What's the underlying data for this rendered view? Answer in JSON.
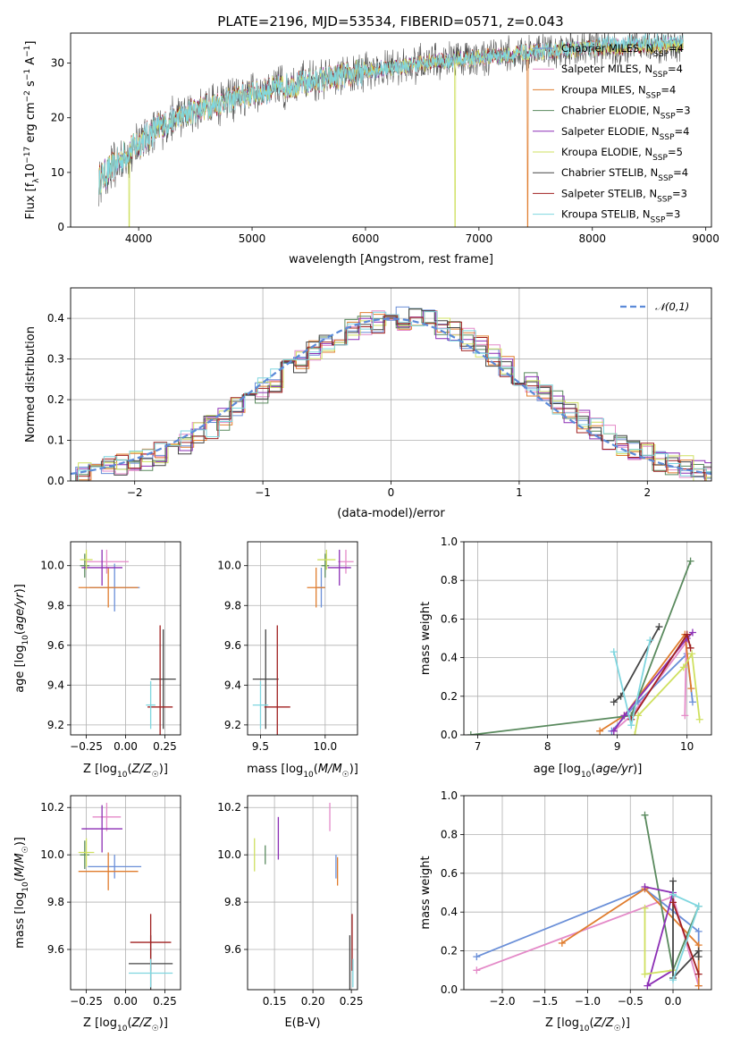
{
  "figure": {
    "title": "PLATE=2196, MJD=53534, FIBERID=0571, z=0.043",
    "colors": [
      "#6a8fd8",
      "#e48ac8",
      "#e07d2e",
      "#5a8a5e",
      "#8c2fb5",
      "#cfe060",
      "#454545",
      "#a02020",
      "#7fd6df"
    ]
  },
  "chart_data": [
    {
      "id": "spectrum",
      "type": "line",
      "xlabel": "wavelength [Angstrom, rest frame]",
      "ylabel": "Flux [f_λ10^-17 erg cm^-2 s^-1 A^-1]",
      "xlim": [
        3400,
        9050
      ],
      "ylim": [
        0,
        35.5
      ],
      "xticks": [
        4000,
        5000,
        6000,
        7000,
        8000,
        9000
      ],
      "yticks": [
        0,
        10,
        20,
        30
      ],
      "legend_position": "top-right",
      "series": [
        {
          "name": "Chabrier MILES, N_SSP=4"
        },
        {
          "name": "Salpeter MILES, N_SSP=4"
        },
        {
          "name": "Kroupa MILES, N_SSP=4"
        },
        {
          "name": "Chabrier ELODIE, N_SSP=3"
        },
        {
          "name": "Salpeter ELODIE, N_SSP=4"
        },
        {
          "name": "Kroupa ELODIE, N_SSP=5"
        },
        {
          "name": "Chabrier STELIB, N_SSP=4"
        },
        {
          "name": "Salpeter STELIB, N_SSP=3"
        },
        {
          "name": "Kroupa STELIB, N_SSP=3"
        }
      ],
      "continuum": {
        "x": [
          3650,
          3800,
          4000,
          4200,
          4500,
          5000,
          5500,
          6000,
          6500,
          7000,
          7500,
          8000,
          8500,
          8800
        ],
        "y": [
          8.5,
          11.5,
          15.5,
          18.5,
          21.5,
          24.5,
          26.5,
          28.5,
          30.0,
          31.0,
          32.0,
          32.8,
          33.2,
          33.4
        ]
      },
      "dropouts": [
        {
          "x": 3915,
          "series": 5
        },
        {
          "x": 6790,
          "series": 5
        },
        {
          "x": 7430,
          "series": 2
        }
      ],
      "grid": false
    },
    {
      "id": "residuals",
      "type": "histogram",
      "xlabel": "(data-model)/error",
      "ylabel": "Normed distribution",
      "xlim": [
        -2.5,
        2.5
      ],
      "ylim": [
        0,
        0.475
      ],
      "xticks": [
        -2,
        -1,
        0,
        1,
        2
      ],
      "yticks": [
        0.0,
        0.1,
        0.2,
        0.3,
        0.4
      ],
      "legend": [
        {
          "name": "𝒩(0,1)",
          "style": "dashed"
        }
      ],
      "legend_position": "top-right",
      "grid": true,
      "bin_width": 0.1
    },
    {
      "id": "age-vs-z",
      "type": "errorbar",
      "xlabel": "Z [log10(Z/Z☉)]",
      "ylabel": "age  [log10(age/yr)]",
      "xlim": [
        -0.35,
        0.35
      ],
      "ylim": [
        9.15,
        10.12
      ],
      "xticks": [
        -0.25,
        0.0,
        0.25
      ],
      "yticks": [
        9.2,
        9.4,
        9.6,
        9.8,
        10.0
      ],
      "grid": true,
      "points": [
        {
          "x": -0.07,
          "y": 9.89,
          "xerr": 0.16,
          "yerr": 0.12,
          "series": 0
        },
        {
          "x": -0.12,
          "y": 10.02,
          "xerr": 0.14,
          "yerr": 0.06,
          "series": 1
        },
        {
          "x": -0.11,
          "y": 9.89,
          "xerr": 0.19,
          "yerr": 0.1,
          "series": 2
        },
        {
          "x": -0.26,
          "y": 10.0,
          "xerr": 0.03,
          "yerr": 0.06,
          "series": 3
        },
        {
          "x": -0.15,
          "y": 9.99,
          "xerr": 0.13,
          "yerr": 0.09,
          "series": 4
        },
        {
          "x": -0.25,
          "y": 10.03,
          "xerr": 0.04,
          "yerr": 0.05,
          "series": 5
        },
        {
          "x": 0.24,
          "y": 9.43,
          "xerr": 0.08,
          "yerr": 0.25,
          "series": 6
        },
        {
          "x": 0.22,
          "y": 9.29,
          "xerr": 0.08,
          "yerr": 0.41,
          "series": 7
        },
        {
          "x": 0.16,
          "y": 9.3,
          "xerr": 0.03,
          "yerr": 0.12,
          "series": 8
        }
      ]
    },
    {
      "id": "age-vs-mass",
      "type": "errorbar",
      "xlabel": "mass [log10(M/M☉)]",
      "ylabel": "",
      "xlim": [
        9.4,
        10.25
      ],
      "ylim": [
        9.15,
        10.12
      ],
      "xticks": [
        9.5,
        10.0
      ],
      "yticks": [
        9.2,
        9.4,
        9.6,
        9.8,
        10.0
      ],
      "grid": true,
      "points": [
        {
          "x": 9.97,
          "y": 9.89,
          "xerr": 0.03,
          "yerr": 0.1,
          "series": 0
        },
        {
          "x": 10.16,
          "y": 10.02,
          "xerr": 0.06,
          "yerr": 0.06,
          "series": 1
        },
        {
          "x": 9.93,
          "y": 9.89,
          "xerr": 0.07,
          "yerr": 0.1,
          "series": 2
        },
        {
          "x": 10.0,
          "y": 10.0,
          "xerr": 0.03,
          "yerr": 0.06,
          "series": 3
        },
        {
          "x": 10.11,
          "y": 9.99,
          "xerr": 0.09,
          "yerr": 0.09,
          "series": 4
        },
        {
          "x": 10.01,
          "y": 10.03,
          "xerr": 0.07,
          "yerr": 0.05,
          "series": 5
        },
        {
          "x": 9.54,
          "y": 9.43,
          "xerr": 0.1,
          "yerr": 0.25,
          "series": 6
        },
        {
          "x": 9.63,
          "y": 9.29,
          "xerr": 0.1,
          "yerr": 0.41,
          "series": 7
        },
        {
          "x": 9.5,
          "y": 9.3,
          "xerr": 0.06,
          "yerr": 0.12,
          "series": 8
        }
      ]
    },
    {
      "id": "weight-vs-age",
      "type": "line",
      "xlabel": "age  [log10(age/yr)]",
      "ylabel": "mass weight",
      "xlim": [
        6.8,
        10.35
      ],
      "ylim": [
        0,
        1.0
      ],
      "xticks": [
        7,
        8,
        9,
        10
      ],
      "yticks": [
        0.0,
        0.2,
        0.4,
        0.6,
        0.8,
        1.0
      ],
      "grid": true,
      "series": [
        {
          "series": 0,
          "x": [
            8.92,
            9.3,
            10.0,
            10.08
          ],
          "y": [
            0.02,
            0.17,
            0.42,
            0.17
          ]
        },
        {
          "series": 1,
          "x": [
            8.95,
            9.2,
            9.99,
            9.97
          ],
          "y": [
            0.02,
            0.1,
            0.48,
            0.1
          ]
        },
        {
          "series": 2,
          "x": [
            8.75,
            9.1,
            9.97,
            10.06
          ],
          "y": [
            0.02,
            0.1,
            0.52,
            0.24
          ]
        },
        {
          "series": 3,
          "x": [
            6.9,
            9.2,
            10.05
          ],
          "y": [
            0.0,
            0.1,
            0.9
          ]
        },
        {
          "series": 4,
          "x": [
            8.95,
            9.1,
            10.0,
            10.08
          ],
          "y": [
            0.02,
            0.1,
            0.5,
            0.53
          ]
        },
        {
          "series": 5,
          "x": [
            9.25,
            9.3,
            9.95,
            10.07,
            10.18
          ],
          "y": [
            0.0,
            0.1,
            0.35,
            0.42,
            0.08
          ]
        },
        {
          "series": 6,
          "x": [
            8.95,
            9.05,
            9.6
          ],
          "y": [
            0.17,
            0.2,
            0.56
          ]
        },
        {
          "series": 7,
          "x": [
            9.2,
            10.0,
            10.05
          ],
          "y": [
            0.08,
            0.52,
            0.45
          ]
        },
        {
          "series": 8,
          "x": [
            8.95,
            9.2,
            9.47
          ],
          "y": [
            0.43,
            0.05,
            0.49
          ]
        }
      ]
    },
    {
      "id": "mass-vs-z",
      "type": "errorbar",
      "xlabel": "Z [log10(Z/Z☉)]",
      "ylabel": "mass [log10(M/M☉)]",
      "xlim": [
        -0.35,
        0.35
      ],
      "ylim": [
        9.43,
        10.25
      ],
      "xticks": [
        -0.25,
        0.0,
        0.25
      ],
      "yticks": [
        9.6,
        9.8,
        10.0,
        10.2
      ],
      "grid": true,
      "points": [
        {
          "x": -0.07,
          "y": 9.95,
          "xerr": 0.17,
          "yerr": 0.05,
          "series": 0
        },
        {
          "x": -0.12,
          "y": 10.16,
          "xerr": 0.09,
          "yerr": 0.06,
          "series": 1
        },
        {
          "x": -0.11,
          "y": 9.93,
          "xerr": 0.19,
          "yerr": 0.08,
          "series": 2
        },
        {
          "x": -0.26,
          "y": 10.0,
          "xerr": 0.03,
          "yerr": 0.06,
          "series": 3
        },
        {
          "x": -0.15,
          "y": 10.11,
          "xerr": 0.13,
          "yerr": 0.1,
          "series": 4
        },
        {
          "x": -0.25,
          "y": 10.01,
          "xerr": 0.05,
          "yerr": 0.06,
          "series": 5
        },
        {
          "x": 0.16,
          "y": 9.54,
          "xerr": 0.14,
          "yerr": 0.12,
          "series": 6
        },
        {
          "x": 0.16,
          "y": 9.63,
          "xerr": 0.13,
          "yerr": 0.12,
          "series": 7
        },
        {
          "x": 0.16,
          "y": 9.5,
          "xerr": 0.14,
          "yerr": 0.06,
          "series": 8
        }
      ]
    },
    {
      "id": "mass-vs-ebv",
      "type": "errorbar",
      "xlabel": "E(B-V)",
      "ylabel": "",
      "xlim": [
        0.115,
        0.258
      ],
      "ylim": [
        9.43,
        10.25
      ],
      "xticks": [
        0.15,
        0.2,
        0.25
      ],
      "yticks": [
        9.6,
        9.8,
        10.0,
        10.2
      ],
      "grid": true,
      "points": [
        {
          "x": 0.23,
          "y": 9.95,
          "xerr": 0,
          "yerr": 0.05,
          "series": 0
        },
        {
          "x": 0.222,
          "y": 10.16,
          "xerr": 0,
          "yerr": 0.06,
          "series": 1
        },
        {
          "x": 0.232,
          "y": 9.93,
          "xerr": 0,
          "yerr": 0.06,
          "series": 2
        },
        {
          "x": 0.138,
          "y": 10.0,
          "xerr": 0,
          "yerr": 0.04,
          "series": 3
        },
        {
          "x": 0.155,
          "y": 10.07,
          "xerr": 0,
          "yerr": 0.09,
          "series": 4
        },
        {
          "x": 0.124,
          "y": 10.0,
          "xerr": 0,
          "yerr": 0.07,
          "series": 5
        },
        {
          "x": 0.248,
          "y": 9.54,
          "xerr": 0,
          "yerr": 0.12,
          "series": 6
        },
        {
          "x": 0.251,
          "y": 9.63,
          "xerr": 0,
          "yerr": 0.12,
          "series": 7
        },
        {
          "x": 0.252,
          "y": 9.5,
          "xerr": 0,
          "yerr": 0.06,
          "series": 8
        }
      ]
    },
    {
      "id": "weight-vs-z",
      "type": "line",
      "xlabel": "Z [log10(Z/Z☉)]",
      "ylabel": "mass weight",
      "xlim": [
        -2.45,
        0.45
      ],
      "ylim": [
        0,
        1.0
      ],
      "xticks": [
        -2.0,
        -1.5,
        -1.0,
        -0.5,
        0.0
      ],
      "yticks": [
        0.0,
        0.2,
        0.4,
        0.6,
        0.8,
        1.0
      ],
      "grid": true,
      "series": [
        {
          "series": 0,
          "x": [
            -2.3,
            -0.33,
            0.3,
            0.3
          ],
          "y": [
            0.17,
            0.52,
            0.3,
            0.02
          ]
        },
        {
          "series": 1,
          "x": [
            -2.3,
            0.0,
            0.3
          ],
          "y": [
            0.1,
            0.48,
            0.02
          ]
        },
        {
          "series": 2,
          "x": [
            -1.3,
            -0.33,
            0.3,
            0.3
          ],
          "y": [
            0.24,
            0.52,
            0.23,
            0.02
          ]
        },
        {
          "series": 3,
          "x": [
            -0.33,
            0.0,
            0.3
          ],
          "y": [
            0.9,
            0.1,
            0.43
          ]
        },
        {
          "series": 4,
          "x": [
            -0.33,
            0.0,
            -0.3,
            0.0
          ],
          "y": [
            0.53,
            0.5,
            0.02,
            0.1
          ]
        },
        {
          "series": 5,
          "x": [
            -0.33,
            -0.33,
            0.0
          ],
          "y": [
            0.42,
            0.08,
            0.1
          ]
        },
        {
          "series": 6,
          "x": [
            0.0,
            0.0,
            0.3,
            0.3
          ],
          "y": [
            0.56,
            0.06,
            0.2,
            0.17
          ]
        },
        {
          "series": 7,
          "x": [
            0.0,
            0.3
          ],
          "y": [
            0.45,
            0.08
          ]
        },
        {
          "series": 8,
          "x": [
            0.0,
            0.3,
            0.0
          ],
          "y": [
            0.49,
            0.43,
            0.05
          ]
        }
      ]
    }
  ]
}
